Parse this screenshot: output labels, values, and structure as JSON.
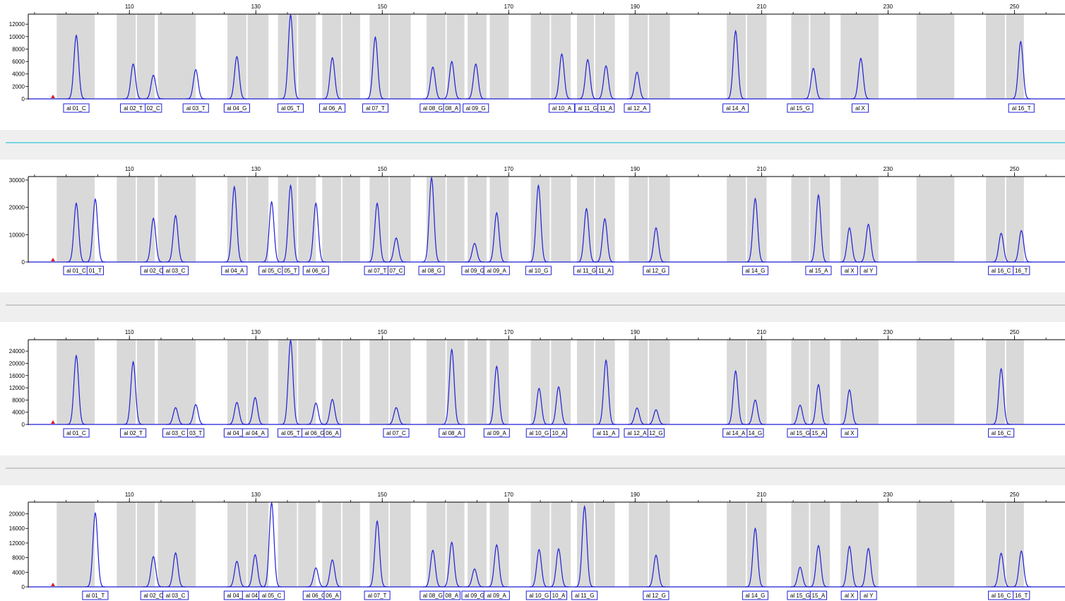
{
  "colors": {
    "trace": "#1f1fd6",
    "bin_fill": "#d9d9d9",
    "label_border": "#1f1fd6",
    "separator_band": "#efefef",
    "separator_line_cyan": "#35c6d8",
    "separator_line_gray": "#b3b3b3",
    "axis": "#000000",
    "marker": "#e02020"
  },
  "chart_data": {
    "type": "line",
    "x_range": [
      94,
      258
    ],
    "x_ticks": [
      110,
      130,
      150,
      170,
      190,
      210,
      230,
      250
    ],
    "bins": [
      [
        98.5,
        104.5
      ],
      [
        108,
        111
      ],
      [
        111.2,
        114
      ],
      [
        114.5,
        120.5
      ],
      [
        125.5,
        128.5
      ],
      [
        128.7,
        132
      ],
      [
        133.5,
        136.5
      ],
      [
        136.7,
        139.5
      ],
      [
        140.5,
        143.5
      ],
      [
        143.7,
        146.5
      ],
      [
        148,
        151
      ],
      [
        151.2,
        154.5
      ],
      [
        157,
        160
      ],
      [
        160.2,
        163
      ],
      [
        163.5,
        166.5
      ],
      [
        167,
        170
      ],
      [
        173.5,
        176.5
      ],
      [
        176.7,
        179.8
      ],
      [
        180.8,
        183.5
      ],
      [
        183.7,
        186.8
      ],
      [
        189,
        192
      ],
      [
        192.2,
        195.5
      ],
      [
        204.5,
        207.5
      ],
      [
        207.7,
        210.8
      ],
      [
        214.7,
        217.5
      ],
      [
        217.7,
        220.8
      ],
      [
        222.5,
        228.5
      ],
      [
        234.5,
        240.5
      ],
      [
        245.5,
        248.5
      ],
      [
        248.7,
        251.5
      ]
    ],
    "panels": [
      {
        "y_max": 13500,
        "y_ticks": [
          0,
          2000,
          4000,
          6000,
          8000,
          10000,
          12000
        ],
        "y_tick_labels": [
          "0",
          "2000",
          "4000",
          "6000",
          "8000",
          "10000",
          "12000"
        ],
        "peaks": [
          {
            "x": 101.6,
            "height": 10200
          },
          {
            "x": 110.6,
            "height": 5600
          },
          {
            "x": 113.8,
            "height": 3800
          },
          {
            "x": 120.5,
            "height": 4700
          },
          {
            "x": 127.0,
            "height": 6800
          },
          {
            "x": 135.5,
            "height": 13500
          },
          {
            "x": 142.1,
            "height": 6600
          },
          {
            "x": 148.9,
            "height": 9900
          },
          {
            "x": 158.0,
            "height": 5100
          },
          {
            "x": 161.0,
            "height": 6000
          },
          {
            "x": 164.8,
            "height": 5600
          },
          {
            "x": 178.4,
            "height": 7200
          },
          {
            "x": 182.5,
            "height": 6300
          },
          {
            "x": 185.4,
            "height": 5300
          },
          {
            "x": 190.3,
            "height": 4300
          },
          {
            "x": 205.9,
            "height": 10900
          },
          {
            "x": 218.2,
            "height": 4900
          },
          {
            "x": 225.7,
            "height": 6500
          },
          {
            "x": 251.0,
            "height": 9200
          }
        ],
        "labels": [
          {
            "x": 101.6,
            "text": "al 01_C"
          },
          {
            "x": 110.6,
            "text": "al 02_T"
          },
          {
            "x": 113.8,
            "text": "02_C"
          },
          {
            "x": 120.5,
            "text": "al 03_T"
          },
          {
            "x": 127.0,
            "text": "al 04_G"
          },
          {
            "x": 135.5,
            "text": "al 05_T"
          },
          {
            "x": 142.1,
            "text": "al 06_A"
          },
          {
            "x": 148.9,
            "text": "al 07_T"
          },
          {
            "x": 158.0,
            "text": "al 08_G"
          },
          {
            "x": 161.0,
            "text": "08_A"
          },
          {
            "x": 164.8,
            "text": "al 09_G"
          },
          {
            "x": 178.4,
            "text": "al 10_A"
          },
          {
            "x": 182.5,
            "text": "al 11_G"
          },
          {
            "x": 185.4,
            "text": "11_A"
          },
          {
            "x": 190.3,
            "text": "al 12_A"
          },
          {
            "x": 205.9,
            "text": "al 14_A"
          },
          {
            "x": 216.1,
            "text": "al 15_G"
          },
          {
            "x": 225.6,
            "text": "al X"
          },
          {
            "x": 251.1,
            "text": "al 16_T"
          }
        ]
      },
      {
        "y_max": 31000,
        "y_ticks": [
          0,
          10000,
          20000,
          30000
        ],
        "y_tick_labels": [
          "0",
          "10000",
          "20000",
          "30000"
        ],
        "peaks": [
          {
            "x": 101.6,
            "height": 21500
          },
          {
            "x": 104.6,
            "height": 23000
          },
          {
            "x": 113.8,
            "height": 16000
          },
          {
            "x": 117.3,
            "height": 17000
          },
          {
            "x": 126.6,
            "height": 27500
          },
          {
            "x": 132.5,
            "height": 22000
          },
          {
            "x": 135.5,
            "height": 28000
          },
          {
            "x": 139.5,
            "height": 21500
          },
          {
            "x": 149.2,
            "height": 21500
          },
          {
            "x": 152.2,
            "height": 8800
          },
          {
            "x": 157.8,
            "height": 30800
          },
          {
            "x": 164.6,
            "height": 6800
          },
          {
            "x": 168.1,
            "height": 18000
          },
          {
            "x": 174.7,
            "height": 28000
          },
          {
            "x": 182.3,
            "height": 19500
          },
          {
            "x": 185.2,
            "height": 15800
          },
          {
            "x": 193.3,
            "height": 12500
          },
          {
            "x": 209.0,
            "height": 23200
          },
          {
            "x": 219.0,
            "height": 24500
          },
          {
            "x": 223.9,
            "height": 12500
          },
          {
            "x": 226.9,
            "height": 13800
          },
          {
            "x": 247.9,
            "height": 10500
          },
          {
            "x": 251.1,
            "height": 11500
          }
        ],
        "labels": [
          {
            "x": 101.6,
            "text": "al 01_C"
          },
          {
            "x": 104.6,
            "text": "01_T"
          },
          {
            "x": 113.8,
            "text": "al 02_C"
          },
          {
            "x": 117.3,
            "text": "al 03_C"
          },
          {
            "x": 126.6,
            "text": "al 04_A"
          },
          {
            "x": 132.5,
            "text": "al 05_C"
          },
          {
            "x": 135.5,
            "text": "05_T"
          },
          {
            "x": 139.5,
            "text": "al 06_G"
          },
          {
            "x": 149.2,
            "text": "al 07_T"
          },
          {
            "x": 152.2,
            "text": "07_C"
          },
          {
            "x": 157.8,
            "text": "al 08_G"
          },
          {
            "x": 164.6,
            "text": "al 09_G"
          },
          {
            "x": 168.1,
            "text": "al 09_A"
          },
          {
            "x": 174.7,
            "text": "al 10_G"
          },
          {
            "x": 182.3,
            "text": "al 11_G"
          },
          {
            "x": 185.2,
            "text": "11_A"
          },
          {
            "x": 193.3,
            "text": "al 12_G"
          },
          {
            "x": 209.0,
            "text": "al 14_G"
          },
          {
            "x": 219.0,
            "text": "al 15_A"
          },
          {
            "x": 223.9,
            "text": "al X"
          },
          {
            "x": 226.9,
            "text": "al Y"
          },
          {
            "x": 247.9,
            "text": "al 16_C"
          },
          {
            "x": 251.1,
            "text": "16_T"
          }
        ]
      },
      {
        "y_max": 27500,
        "y_ticks": [
          0,
          4000,
          8000,
          12000,
          16000,
          20000,
          24000
        ],
        "y_tick_labels": [
          "0",
          "4000",
          "8000",
          "12000",
          "16000",
          "20000",
          "24000"
        ],
        "peaks": [
          {
            "x": 101.6,
            "height": 22500
          },
          {
            "x": 110.6,
            "height": 20500
          },
          {
            "x": 117.3,
            "height": 5500
          },
          {
            "x": 120.5,
            "height": 6500
          },
          {
            "x": 127.0,
            "height": 7200
          },
          {
            "x": 129.9,
            "height": 8800
          },
          {
            "x": 135.5,
            "height": 27500
          },
          {
            "x": 139.5,
            "height": 7000
          },
          {
            "x": 142.1,
            "height": 8200
          },
          {
            "x": 152.2,
            "height": 5500
          },
          {
            "x": 161.0,
            "height": 24500
          },
          {
            "x": 168.1,
            "height": 19000
          },
          {
            "x": 174.8,
            "height": 11800
          },
          {
            "x": 177.9,
            "height": 12300
          },
          {
            "x": 185.4,
            "height": 21000
          },
          {
            "x": 190.3,
            "height": 5400
          },
          {
            "x": 193.3,
            "height": 4800
          },
          {
            "x": 205.9,
            "height": 17500
          },
          {
            "x": 209.0,
            "height": 8000
          },
          {
            "x": 216.1,
            "height": 6300
          },
          {
            "x": 219.0,
            "height": 13000
          },
          {
            "x": 223.9,
            "height": 11300
          },
          {
            "x": 247.9,
            "height": 18200
          }
        ],
        "labels": [
          {
            "x": 101.6,
            "text": "al 01_C"
          },
          {
            "x": 110.6,
            "text": "al 02_T"
          },
          {
            "x": 117.3,
            "text": "al 03_C"
          },
          {
            "x": 120.5,
            "text": "03_T"
          },
          {
            "x": 127.0,
            "text": "al 04_G"
          },
          {
            "x": 129.9,
            "text": "al 04_A"
          },
          {
            "x": 135.5,
            "text": "al 05_T"
          },
          {
            "x": 139.3,
            "text": "al 06_G"
          },
          {
            "x": 142.1,
            "text": "06_A"
          },
          {
            "x": 152.2,
            "text": "al 07_C"
          },
          {
            "x": 161.0,
            "text": "al 08_A"
          },
          {
            "x": 168.1,
            "text": "al 09_A"
          },
          {
            "x": 174.8,
            "text": "al 10_G"
          },
          {
            "x": 177.9,
            "text": "10_A"
          },
          {
            "x": 185.4,
            "text": "al 11_A"
          },
          {
            "x": 190.3,
            "text": "al 12_A"
          },
          {
            "x": 193.3,
            "text": "12_G"
          },
          {
            "x": 205.9,
            "text": "al 14_A"
          },
          {
            "x": 209.0,
            "text": "14_G"
          },
          {
            "x": 216.1,
            "text": "al 15_G"
          },
          {
            "x": 219.0,
            "text": "15_A"
          },
          {
            "x": 223.9,
            "text": "al X"
          },
          {
            "x": 247.9,
            "text": "al 16_C"
          }
        ]
      },
      {
        "y_max": 23000,
        "y_ticks": [
          0,
          4000,
          8000,
          12000,
          16000,
          20000
        ],
        "y_tick_labels": [
          "0",
          "4000",
          "8000",
          "12000",
          "16000",
          "20000"
        ],
        "peaks": [
          {
            "x": 104.6,
            "height": 20200
          },
          {
            "x": 113.8,
            "height": 8300
          },
          {
            "x": 117.3,
            "height": 9300
          },
          {
            "x": 127.0,
            "height": 7000
          },
          {
            "x": 129.9,
            "height": 8800
          },
          {
            "x": 132.5,
            "height": 23000
          },
          {
            "x": 139.5,
            "height": 5200
          },
          {
            "x": 142.1,
            "height": 7400
          },
          {
            "x": 149.2,
            "height": 18000
          },
          {
            "x": 158.0,
            "height": 10000
          },
          {
            "x": 161.0,
            "height": 12200
          },
          {
            "x": 164.6,
            "height": 4900
          },
          {
            "x": 168.1,
            "height": 11500
          },
          {
            "x": 174.8,
            "height": 10200
          },
          {
            "x": 177.9,
            "height": 10400
          },
          {
            "x": 182.0,
            "height": 22000
          },
          {
            "x": 193.3,
            "height": 8700
          },
          {
            "x": 209.0,
            "height": 16000
          },
          {
            "x": 216.1,
            "height": 5400
          },
          {
            "x": 219.0,
            "height": 11300
          },
          {
            "x": 223.9,
            "height": 11100
          },
          {
            "x": 226.9,
            "height": 10500
          },
          {
            "x": 247.9,
            "height": 9200
          },
          {
            "x": 251.1,
            "height": 9800
          }
        ],
        "labels": [
          {
            "x": 104.6,
            "text": "al 01_T"
          },
          {
            "x": 113.8,
            "text": "al 02_C"
          },
          {
            "x": 117.3,
            "text": "al 03_C"
          },
          {
            "x": 127.0,
            "text": "al 04_G"
          },
          {
            "x": 129.9,
            "text": "al 04_A"
          },
          {
            "x": 132.5,
            "text": "al 05_C"
          },
          {
            "x": 139.5,
            "text": "al 06_G"
          },
          {
            "x": 142.1,
            "text": "06_A"
          },
          {
            "x": 149.2,
            "text": "al 07_T"
          },
          {
            "x": 158.0,
            "text": "al 08_G"
          },
          {
            "x": 161.0,
            "text": "08_A"
          },
          {
            "x": 164.6,
            "text": "al 09_G"
          },
          {
            "x": 168.1,
            "text": "al 09_A"
          },
          {
            "x": 174.8,
            "text": "al 10_G"
          },
          {
            "x": 177.9,
            "text": "10_A"
          },
          {
            "x": 182.0,
            "text": "al 11_G"
          },
          {
            "x": 193.3,
            "text": "al 12_G"
          },
          {
            "x": 209.0,
            "text": "al 14_G"
          },
          {
            "x": 216.1,
            "text": "al 15_G"
          },
          {
            "x": 219.0,
            "text": "15_A"
          },
          {
            "x": 223.9,
            "text": "al X"
          },
          {
            "x": 226.9,
            "text": "al Y"
          },
          {
            "x": 247.9,
            "text": "al 16_C"
          },
          {
            "x": 251.1,
            "text": "16_T"
          }
        ]
      }
    ]
  }
}
